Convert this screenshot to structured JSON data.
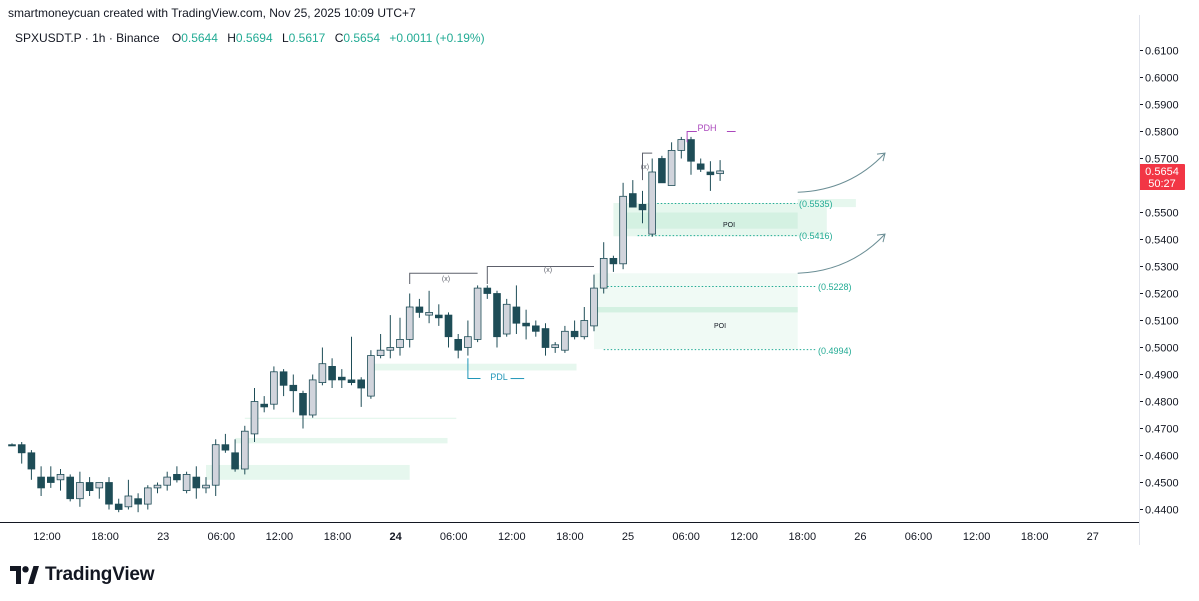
{
  "header": {
    "credit": "smartmoneycuan created with TradingView.com, Nov 25, 2025 10:09 UTC+7"
  },
  "legend": {
    "symbol": "SPXUSDT.P · 1h · Binance",
    "open_label": "O",
    "open": "0.5644",
    "high_label": "H",
    "high": "0.5694",
    "low_label": "L",
    "low": "0.5617",
    "close_label": "C",
    "close": "0.5654",
    "change": "+0.0011 (+0.19%)"
  },
  "price_badge": {
    "price": "0.5654",
    "countdown": "50:27",
    "color": "#f23645"
  },
  "colors": {
    "up_fill": "#d1d4dc",
    "down_fill": "#1e4d57",
    "candle_border": "#1e4d57",
    "zone_fill": "#e6f7ee",
    "zone_line": "#22ab94",
    "pdh": "#ab47bc",
    "pdl": "#2196b8",
    "arrow": "#6b8e95"
  },
  "brand": {
    "name": "TradingView",
    "icon": "tradingview-logo-icon"
  },
  "chart_data": {
    "type": "candlestick",
    "x_ticks": [
      "12:00",
      "18:00",
      "23",
      "06:00",
      "12:00",
      "18:00",
      "24",
      "06:00",
      "12:00",
      "18:00",
      "25",
      "06:00",
      "12:00",
      "18:00",
      "26",
      "06:00",
      "12:00",
      "18:00",
      "27"
    ],
    "x_ticks_bold": [
      6
    ],
    "y_ticks": [
      "0.6100",
      "0.6000",
      "0.5900",
      "0.5800",
      "0.5700",
      "0.5500",
      "0.5400",
      "0.5300",
      "0.5200",
      "0.5100",
      "0.5000",
      "0.4900",
      "0.4800",
      "0.4700",
      "0.4600",
      "0.4500",
      "0.4400"
    ],
    "y_range": [
      0.4375,
      0.6135
    ],
    "candles": [
      {
        "o": 0.464,
        "h": 0.4645,
        "l": 0.4635,
        "c": 0.4638
      },
      {
        "o": 0.464,
        "h": 0.465,
        "l": 0.457,
        "c": 0.461
      },
      {
        "o": 0.461,
        "h": 0.462,
        "l": 0.451,
        "c": 0.455
      },
      {
        "o": 0.452,
        "h": 0.456,
        "l": 0.445,
        "c": 0.448
      },
      {
        "o": 0.452,
        "h": 0.456,
        "l": 0.448,
        "c": 0.45
      },
      {
        "o": 0.451,
        "h": 0.455,
        "l": 0.447,
        "c": 0.453
      },
      {
        "o": 0.452,
        "h": 0.453,
        "l": 0.443,
        "c": 0.444
      },
      {
        "o": 0.444,
        "h": 0.454,
        "l": 0.441,
        "c": 0.45
      },
      {
        "o": 0.45,
        "h": 0.452,
        "l": 0.445,
        "c": 0.447
      },
      {
        "o": 0.448,
        "h": 0.45,
        "l": 0.444,
        "c": 0.45
      },
      {
        "o": 0.45,
        "h": 0.452,
        "l": 0.44,
        "c": 0.442
      },
      {
        "o": 0.442,
        "h": 0.444,
        "l": 0.439,
        "c": 0.44
      },
      {
        "o": 0.441,
        "h": 0.451,
        "l": 0.44,
        "c": 0.445
      },
      {
        "o": 0.444,
        "h": 0.446,
        "l": 0.439,
        "c": 0.442
      },
      {
        "o": 0.442,
        "h": 0.449,
        "l": 0.44,
        "c": 0.448
      },
      {
        "o": 0.448,
        "h": 0.45,
        "l": 0.446,
        "c": 0.449
      },
      {
        "o": 0.449,
        "h": 0.454,
        "l": 0.447,
        "c": 0.452
      },
      {
        "o": 0.453,
        "h": 0.456,
        "l": 0.45,
        "c": 0.451
      },
      {
        "o": 0.447,
        "h": 0.454,
        "l": 0.446,
        "c": 0.453
      },
      {
        "o": 0.452,
        "h": 0.456,
        "l": 0.444,
        "c": 0.448
      },
      {
        "o": 0.448,
        "h": 0.452,
        "l": 0.446,
        "c": 0.449
      },
      {
        "o": 0.449,
        "h": 0.466,
        "l": 0.445,
        "c": 0.464
      },
      {
        "o": 0.464,
        "h": 0.468,
        "l": 0.461,
        "c": 0.462
      },
      {
        "o": 0.461,
        "h": 0.466,
        "l": 0.454,
        "c": 0.455
      },
      {
        "o": 0.455,
        "h": 0.471,
        "l": 0.453,
        "c": 0.469
      },
      {
        "o": 0.468,
        "h": 0.485,
        "l": 0.465,
        "c": 0.48
      },
      {
        "o": 0.479,
        "h": 0.482,
        "l": 0.476,
        "c": 0.478
      },
      {
        "o": 0.479,
        "h": 0.493,
        "l": 0.477,
        "c": 0.491
      },
      {
        "o": 0.491,
        "h": 0.492,
        "l": 0.482,
        "c": 0.486
      },
      {
        "o": 0.486,
        "h": 0.49,
        "l": 0.476,
        "c": 0.484
      },
      {
        "o": 0.483,
        "h": 0.484,
        "l": 0.47,
        "c": 0.475
      },
      {
        "o": 0.475,
        "h": 0.49,
        "l": 0.474,
        "c": 0.488
      },
      {
        "o": 0.487,
        "h": 0.5,
        "l": 0.486,
        "c": 0.494
      },
      {
        "o": 0.493,
        "h": 0.496,
        "l": 0.485,
        "c": 0.488
      },
      {
        "o": 0.489,
        "h": 0.492,
        "l": 0.485,
        "c": 0.488
      },
      {
        "o": 0.488,
        "h": 0.504,
        "l": 0.486,
        "c": 0.487
      },
      {
        "o": 0.488,
        "h": 0.489,
        "l": 0.478,
        "c": 0.485
      },
      {
        "o": 0.482,
        "h": 0.499,
        "l": 0.481,
        "c": 0.497
      },
      {
        "o": 0.497,
        "h": 0.505,
        "l": 0.496,
        "c": 0.499
      },
      {
        "o": 0.499,
        "h": 0.512,
        "l": 0.496,
        "c": 0.5
      },
      {
        "o": 0.5,
        "h": 0.511,
        "l": 0.497,
        "c": 0.503
      },
      {
        "o": 0.503,
        "h": 0.52,
        "l": 0.5,
        "c": 0.515
      },
      {
        "o": 0.515,
        "h": 0.518,
        "l": 0.511,
        "c": 0.513
      },
      {
        "o": 0.512,
        "h": 0.521,
        "l": 0.509,
        "c": 0.513
      },
      {
        "o": 0.512,
        "h": 0.516,
        "l": 0.508,
        "c": 0.511
      },
      {
        "o": 0.512,
        "h": 0.513,
        "l": 0.5,
        "c": 0.504
      },
      {
        "o": 0.503,
        "h": 0.505,
        "l": 0.496,
        "c": 0.499
      },
      {
        "o": 0.5,
        "h": 0.51,
        "l": 0.497,
        "c": 0.504
      },
      {
        "o": 0.503,
        "h": 0.523,
        "l": 0.502,
        "c": 0.522
      },
      {
        "o": 0.522,
        "h": 0.523,
        "l": 0.518,
        "c": 0.52
      },
      {
        "o": 0.52,
        "h": 0.521,
        "l": 0.5,
        "c": 0.504
      },
      {
        "o": 0.505,
        "h": 0.518,
        "l": 0.504,
        "c": 0.516
      },
      {
        "o": 0.515,
        "h": 0.523,
        "l": 0.505,
        "c": 0.509
      },
      {
        "o": 0.509,
        "h": 0.514,
        "l": 0.503,
        "c": 0.508
      },
      {
        "o": 0.508,
        "h": 0.51,
        "l": 0.504,
        "c": 0.506
      },
      {
        "o": 0.507,
        "h": 0.509,
        "l": 0.497,
        "c": 0.5
      },
      {
        "o": 0.5,
        "h": 0.502,
        "l": 0.498,
        "c": 0.501
      },
      {
        "o": 0.499,
        "h": 0.508,
        "l": 0.498,
        "c": 0.506
      },
      {
        "o": 0.506,
        "h": 0.51,
        "l": 0.503,
        "c": 0.504
      },
      {
        "o": 0.504,
        "h": 0.515,
        "l": 0.503,
        "c": 0.51
      },
      {
        "o": 0.508,
        "h": 0.527,
        "l": 0.506,
        "c": 0.522
      },
      {
        "o": 0.522,
        "h": 0.539,
        "l": 0.52,
        "c": 0.533
      },
      {
        "o": 0.533,
        "h": 0.534,
        "l": 0.528,
        "c": 0.531
      },
      {
        "o": 0.531,
        "h": 0.561,
        "l": 0.529,
        "c": 0.556
      },
      {
        "o": 0.557,
        "h": 0.562,
        "l": 0.552,
        "c": 0.552
      },
      {
        "o": 0.553,
        "h": 0.558,
        "l": 0.546,
        "c": 0.551
      },
      {
        "o": 0.542,
        "h": 0.57,
        "l": 0.541,
        "c": 0.565
      },
      {
        "o": 0.57,
        "h": 0.571,
        "l": 0.561,
        "c": 0.561
      },
      {
        "o": 0.56,
        "h": 0.576,
        "l": 0.56,
        "c": 0.573
      },
      {
        "o": 0.573,
        "h": 0.578,
        "l": 0.57,
        "c": 0.577
      },
      {
        "o": 0.577,
        "h": 0.578,
        "l": 0.564,
        "c": 0.569
      },
      {
        "o": 0.568,
        "h": 0.57,
        "l": 0.565,
        "c": 0.566
      },
      {
        "o": 0.565,
        "h": 0.569,
        "l": 0.558,
        "c": 0.564
      },
      {
        "o": 0.5644,
        "h": 0.5694,
        "l": 0.5617,
        "c": 0.5654
      }
    ],
    "zones": [
      {
        "top": 0.556,
        "bottom": 0.4994,
        "label": "POI"
      },
      {
        "top": 0.5538,
        "bottom": 0.5412,
        "label": "POI"
      }
    ],
    "levels": [
      {
        "price": 0.5535,
        "label": "(0.5535)"
      },
      {
        "price": 0.5416,
        "label": "(0.5416)"
      },
      {
        "price": 0.5228,
        "label": "(0.5228)"
      },
      {
        "price": 0.4994,
        "label": "(0.4994)"
      }
    ],
    "annotations": {
      "pdh": "PDH",
      "pdl": "PDL",
      "poi_upper": "POI",
      "poi_lower": "POI",
      "choch_1": "(x)",
      "choch_2": "(x)",
      "choch_3": "(x)"
    }
  }
}
